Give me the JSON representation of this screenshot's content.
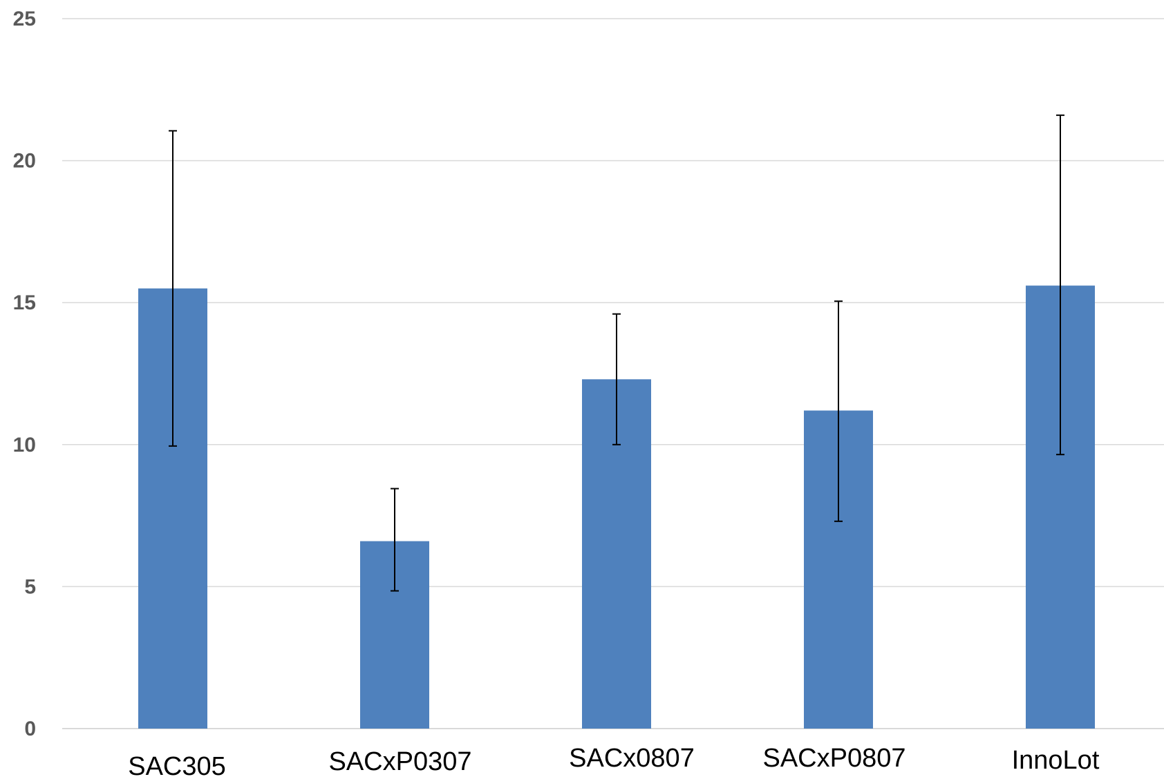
{
  "chart_data": {
    "type": "bar",
    "categories": [
      "SAC305",
      "SACxP0307",
      "SACx0807",
      "SACxP0807",
      "InnoLot"
    ],
    "values": [
      15.5,
      6.6,
      12.3,
      11.2,
      15.6
    ],
    "error_low": [
      9.95,
      4.85,
      10.0,
      7.3,
      9.65
    ],
    "error_high": [
      21.05,
      8.45,
      14.6,
      15.05,
      21.6
    ],
    "ylim": [
      0,
      25
    ],
    "yticks": [
      "0",
      "5",
      "10",
      "15",
      "20",
      "25"
    ],
    "ytick_values": [
      0,
      5,
      10,
      15,
      20,
      25
    ],
    "title": "",
    "xlabel": "",
    "ylabel": "",
    "grid": true,
    "bar_color": "#4f81bd",
    "error_color": "#000000"
  }
}
